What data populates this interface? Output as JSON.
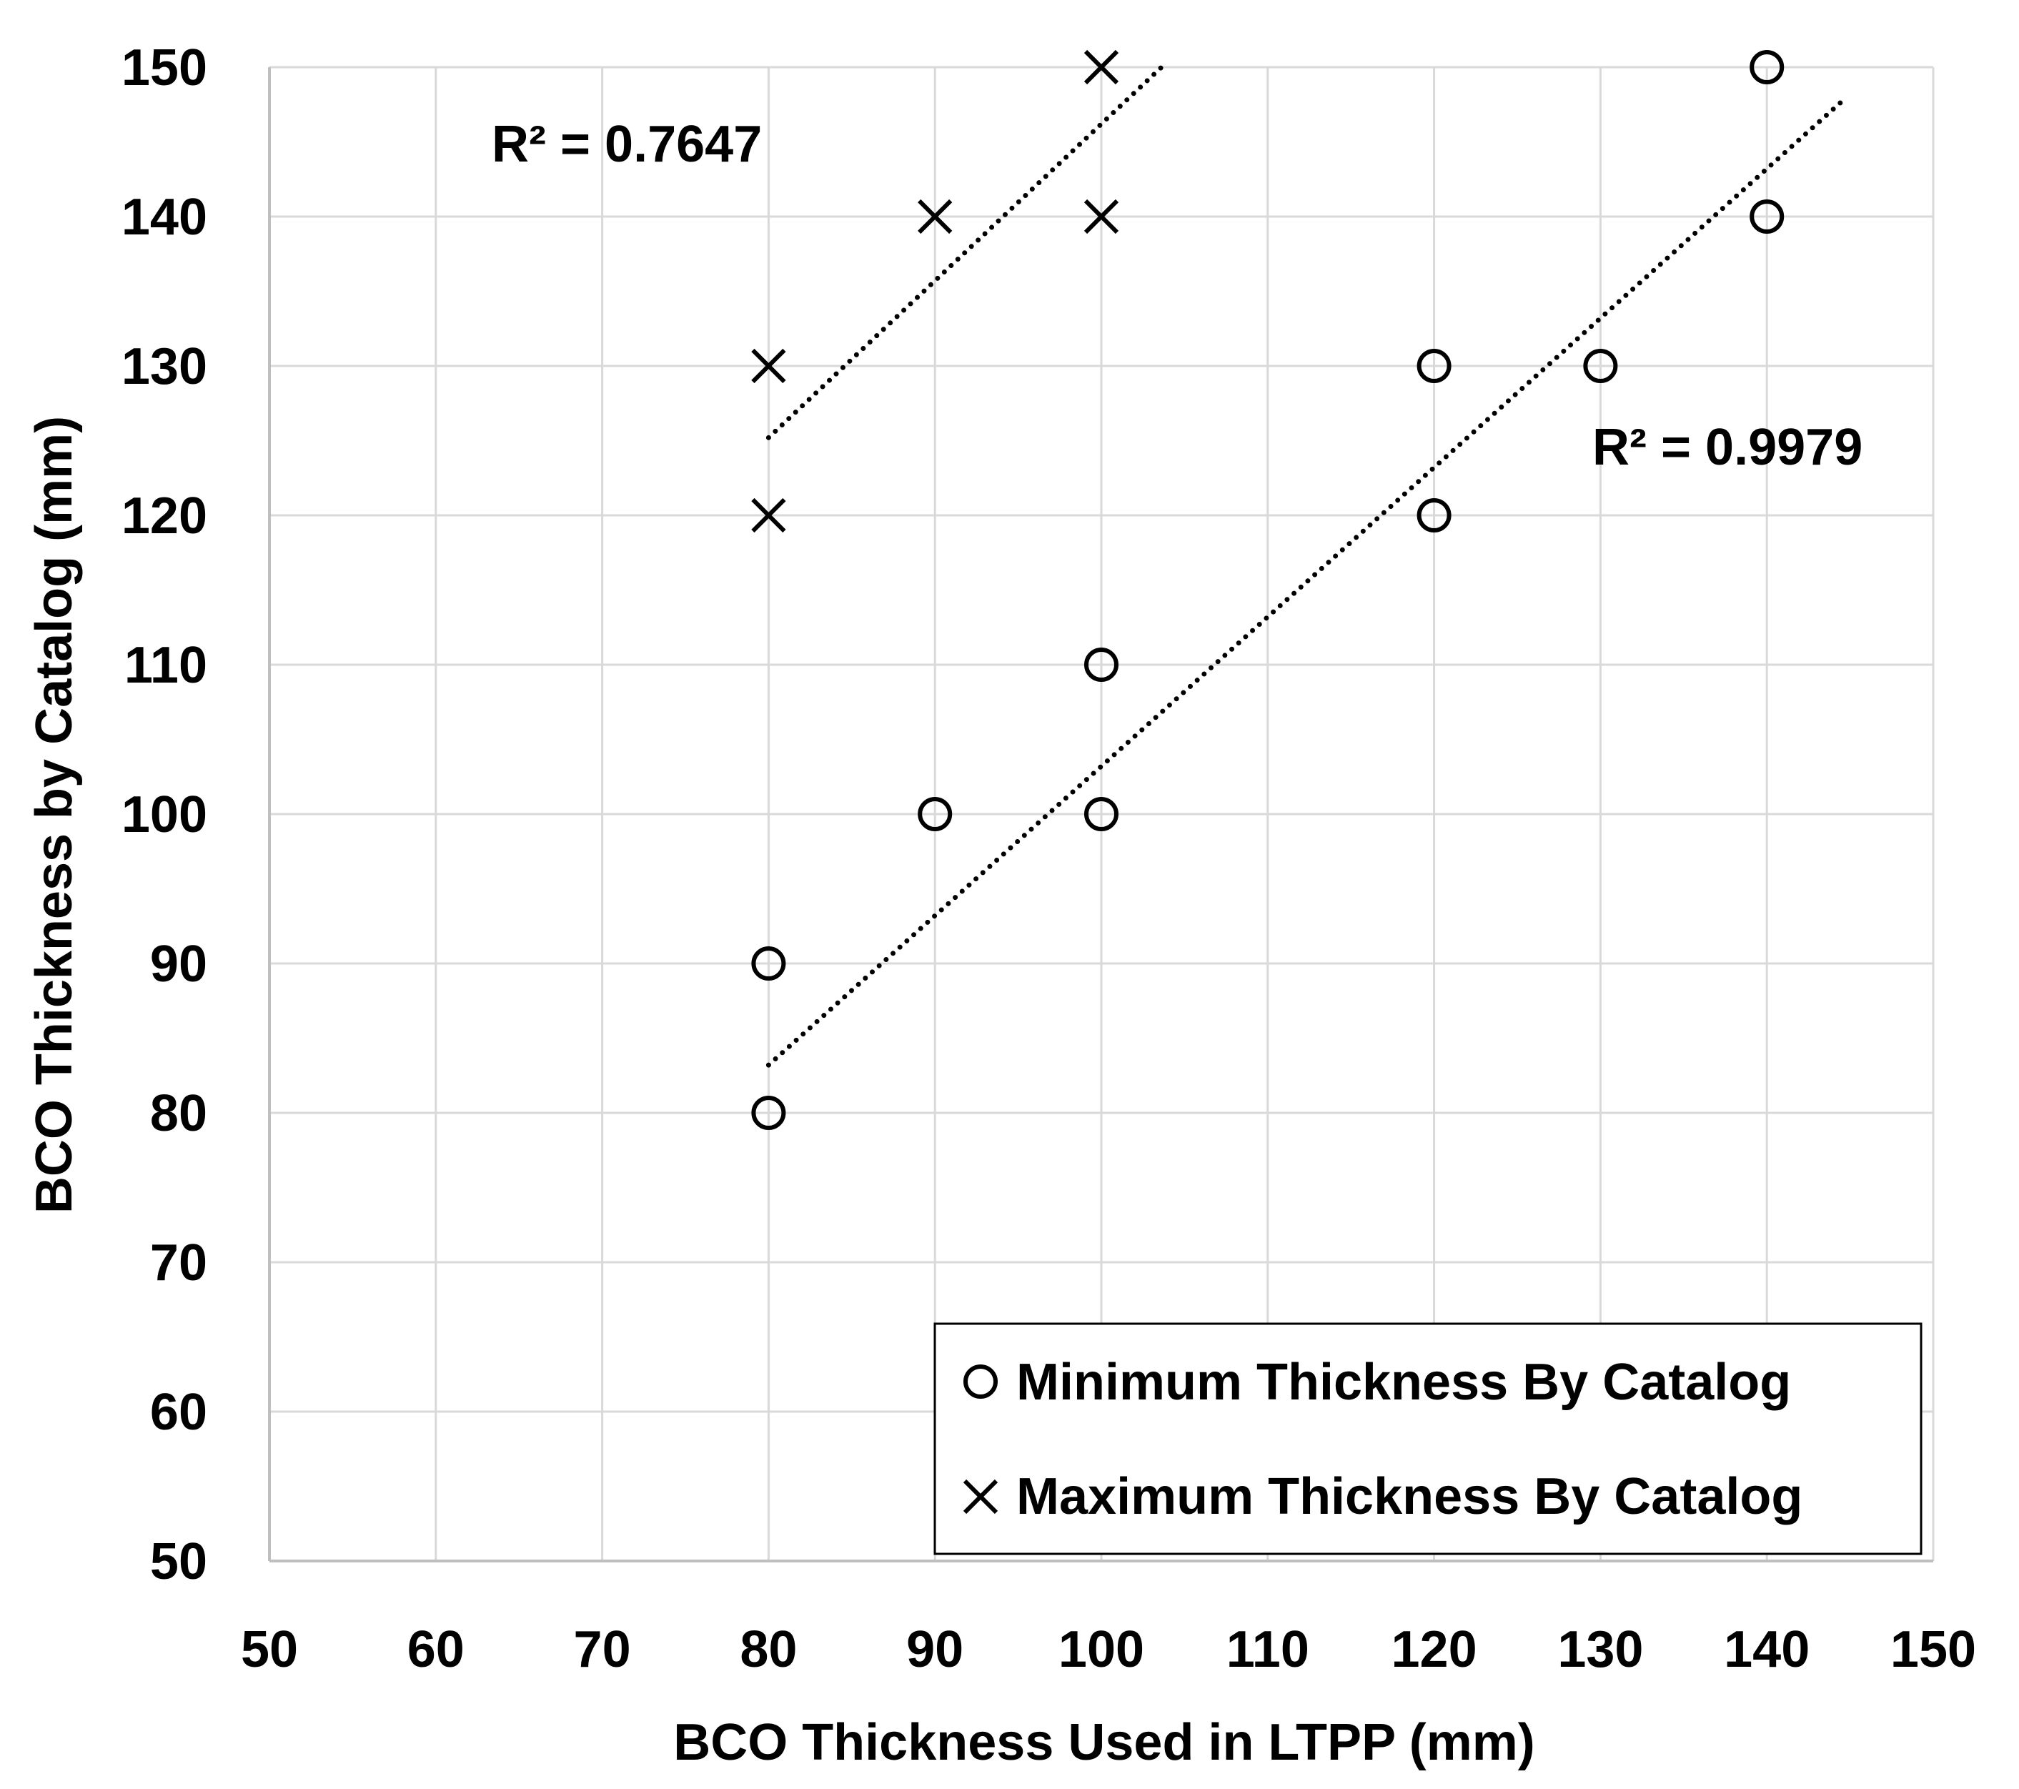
{
  "chart_data": {
    "type": "scatter",
    "title": "",
    "xlabel": "BCO Thickness Used in LTPP (mm)",
    "ylabel": "BCO Thickness by Catalog (mm)",
    "xlim": [
      50,
      150
    ],
    "ylim": [
      50,
      150
    ],
    "x_ticks": [
      50,
      60,
      70,
      80,
      90,
      100,
      110,
      120,
      130,
      140,
      150
    ],
    "y_ticks": [
      50,
      60,
      70,
      80,
      90,
      100,
      110,
      120,
      130,
      140,
      150
    ],
    "grid": true,
    "legend_position": "bottom-right",
    "series": [
      {
        "name": "Minimum Thickness By Catalog",
        "marker": "circle",
        "points": [
          {
            "x": 80,
            "y": 80
          },
          {
            "x": 80,
            "y": 90
          },
          {
            "x": 90,
            "y": 100
          },
          {
            "x": 100,
            "y": 100
          },
          {
            "x": 100,
            "y": 110
          },
          {
            "x": 120,
            "y": 120
          },
          {
            "x": 120,
            "y": 130
          },
          {
            "x": 130,
            "y": 130
          },
          {
            "x": 140,
            "y": 140
          },
          {
            "x": 140,
            "y": 150
          }
        ],
        "trendline": {
          "slope": 1.0,
          "intercept": 3.2,
          "x_from": 80,
          "x_to": 144.5
        },
        "r2_label": "R² = 0.9979"
      },
      {
        "name": "Maximum Thickness By Catalog",
        "marker": "x",
        "points": [
          {
            "x": 80,
            "y": 120
          },
          {
            "x": 80,
            "y": 130
          },
          {
            "x": 90,
            "y": 140
          },
          {
            "x": 100,
            "y": 140
          },
          {
            "x": 100,
            "y": 150
          }
        ],
        "trendline": {
          "slope": 1.05,
          "intercept": 41.2,
          "x_from": 80,
          "x_to": 103.6
        },
        "r2_label": "R² = 0.7647"
      }
    ]
  },
  "colors": {
    "marker": "#000000",
    "grid": "#d9d9d9",
    "axis": "#bfbfbf",
    "text": "#000000"
  }
}
